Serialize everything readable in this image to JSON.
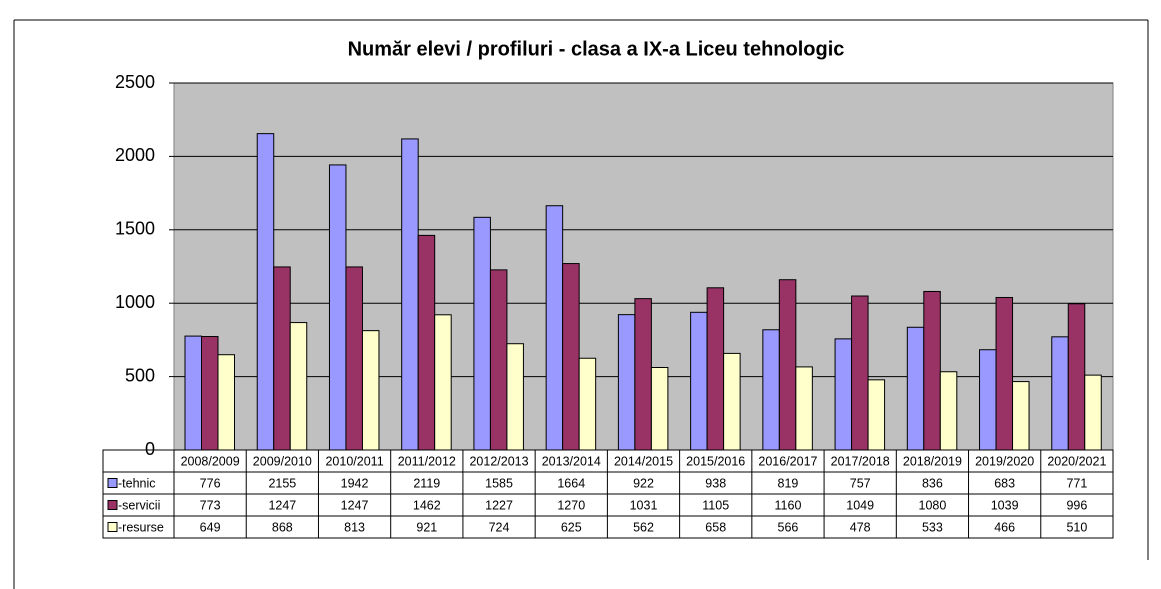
{
  "chart_data": {
    "type": "bar",
    "title": "Număr elevi / profiluri - clasa a IX-a Liceu tehnologic",
    "categories": [
      "2008/2009",
      "2009/2010",
      "2010/2011",
      "2011/2012",
      "2012/2013",
      "2013/2014",
      "2014/2015",
      "2015/2016",
      "2016/2017",
      "2017/2018",
      "2018/2019",
      "2019/2020",
      "2020/2021"
    ],
    "series": [
      {
        "name": "-tehnic",
        "color": "#9999ff",
        "values": [
          776,
          2155,
          1942,
          2119,
          1585,
          1664,
          922,
          938,
          819,
          757,
          836,
          683,
          771
        ]
      },
      {
        "name": "-servicii",
        "color": "#993366",
        "values": [
          773,
          1247,
          1247,
          1462,
          1227,
          1270,
          1031,
          1105,
          1160,
          1049,
          1080,
          1039,
          996
        ]
      },
      {
        "name": "-resurse",
        "color": "#ffffcc",
        "values": [
          649,
          868,
          813,
          921,
          724,
          625,
          562,
          658,
          566,
          478,
          533,
          466,
          510
        ]
      }
    ],
    "ylim": [
      0,
      2500
    ],
    "yticks": [
      0,
      500,
      1000,
      1500,
      2000,
      2500
    ],
    "grid": true,
    "plot_background": "#c0c0c0"
  }
}
